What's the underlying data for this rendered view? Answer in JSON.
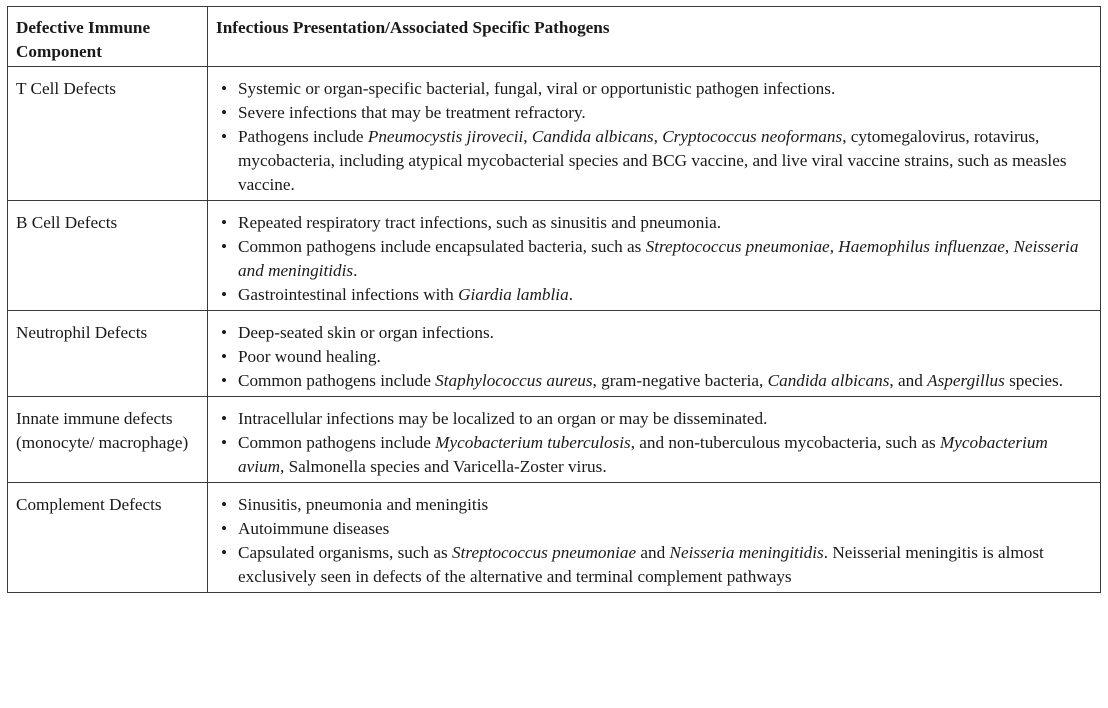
{
  "table": {
    "headers": {
      "component": "Defective Immune Component",
      "presentation": "Infectious Presentation/Associated Specific Pathogens"
    },
    "bullet_glyph": "•",
    "rows": [
      {
        "component": "T Cell Defects",
        "bullets": [
          [
            {
              "t": "Systemic or organ-specific bacterial, fungal, viral or opportunistic pathogen infections."
            }
          ],
          [
            {
              "t": "Severe infections that may be treatment refractory."
            }
          ],
          [
            {
              "t": "Pathogens include "
            },
            {
              "t": "Pneumocystis jirovecii",
              "i": true
            },
            {
              "t": ", "
            },
            {
              "t": "Candida albicans",
              "i": true
            },
            {
              "t": ", "
            },
            {
              "t": "Cryptococcus neoformans",
              "i": true
            },
            {
              "t": ", cytomegalovirus, rotavirus, mycobacteria, including atypical mycobacterial species and BCG vaccine, and live viral vaccine strains, such as measles vaccine."
            }
          ]
        ]
      },
      {
        "component": "B Cell Defects",
        "bullets": [
          [
            {
              "t": "Repeated respiratory tract infections, such as sinusitis and pneumonia."
            }
          ],
          [
            {
              "t": "Common pathogens include encapsulated bacteria, such as "
            },
            {
              "t": "Streptococcus pneumoniae",
              "i": true
            },
            {
              "t": ", "
            },
            {
              "t": "Haemophilus influenzae",
              "i": true
            },
            {
              "t": ", "
            },
            {
              "t": "Neisseria and meningitidis",
              "i": true
            },
            {
              "t": "."
            }
          ],
          [
            {
              "t": "Gastrointestinal infections with "
            },
            {
              "t": "Giardia lamblia",
              "i": true
            },
            {
              "t": "."
            }
          ]
        ]
      },
      {
        "component": "Neutrophil Defects",
        "bullets": [
          [
            {
              "t": "Deep-seated skin or organ infections."
            }
          ],
          [
            {
              "t": "Poor wound healing."
            }
          ],
          [
            {
              "t": "Common pathogens include "
            },
            {
              "t": "Staphylococcus aureus",
              "i": true
            },
            {
              "t": ", gram-negative bacteria, "
            },
            {
              "t": "Candida albicans",
              "i": true
            },
            {
              "t": ", and "
            },
            {
              "t": "Aspergillus",
              "i": true
            },
            {
              "t": " species."
            }
          ]
        ]
      },
      {
        "component": "Innate immune defects (monocyte/ macrophage)",
        "bullets": [
          [
            {
              "t": "Intracellular infections may be localized to an organ or may be disseminated."
            }
          ],
          [
            {
              "t": "Common pathogens include "
            },
            {
              "t": "Mycobacterium tuberculosis",
              "i": true
            },
            {
              "t": ", and non-tuberculous mycobacteria, such as "
            },
            {
              "t": "Mycobacterium avium",
              "i": true
            },
            {
              "t": ", Salmonella species and Varicella-Zoster virus."
            }
          ]
        ]
      },
      {
        "component": "Complement Defects",
        "bullets": [
          [
            {
              "t": "Sinusitis, pneumonia and meningitis"
            }
          ],
          [
            {
              "t": "Autoimmune diseases"
            }
          ],
          [
            {
              "t": "Capsulated organisms, such as "
            },
            {
              "t": "Streptococcus pneumoniae",
              "i": true
            },
            {
              "t": " and "
            },
            {
              "t": "Neisseria meningitidis",
              "i": true
            },
            {
              "t": ". Neisserial meningitis is almost exclusively seen in defects of the alternative and terminal complement pathways"
            }
          ]
        ]
      }
    ]
  }
}
